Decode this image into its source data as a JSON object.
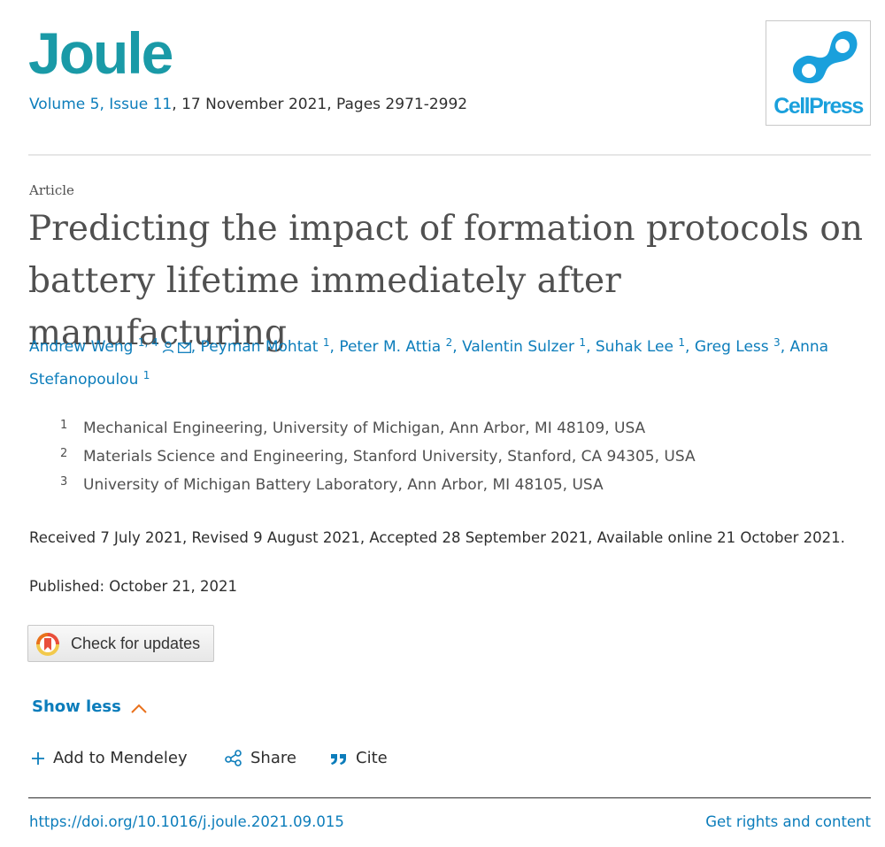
{
  "journal": {
    "title": "Joule",
    "volume_issue": "Volume 5, Issue 11",
    "date_pages": ", 17 November 2021, Pages 2971-2992",
    "publisher_logo_text": "CellPress",
    "logo_color": "#1aa0dc"
  },
  "article": {
    "type": "Article",
    "title_line1": "Predicting the impact of formation protocols on",
    "title_line2": "battery lifetime immediately after manufacturing"
  },
  "authors": [
    {
      "name": "Andrew Weng",
      "sup": "1, 4",
      "icons": [
        "person-icon",
        "envelope-icon"
      ]
    },
    {
      "name": "Peyman Mohtat",
      "sup": "1"
    },
    {
      "name": "Peter M. Attia",
      "sup": "2"
    },
    {
      "name": "Valentin Sulzer",
      "sup": "1"
    },
    {
      "name": "Suhak Lee",
      "sup": "1"
    },
    {
      "name": "Greg Less",
      "sup": "3"
    },
    {
      "name": "Anna Stefanopoulou",
      "sup": "1"
    }
  ],
  "affiliations": [
    {
      "num": "1",
      "text": "Mechanical Engineering, University of Michigan, Ann Arbor, MI 48109, USA"
    },
    {
      "num": "2",
      "text": "Materials Science and Engineering, Stanford University, Stanford, CA 94305, USA"
    },
    {
      "num": "3",
      "text": "University of Michigan Battery Laboratory, Ann Arbor, MI 48105, USA"
    }
  ],
  "dates": "Received 7 July 2021, Revised 9 August 2021, Accepted 28 September 2021, Available online 21 October 2021.",
  "published": "Published: October 21, 2021",
  "check_updates_label": "Check for updates",
  "show_less_label": "Show less",
  "actions": {
    "mendeley": "Add to Mendeley",
    "share": "Share",
    "cite": "Cite"
  },
  "doi": "https://doi.org/10.1016/j.joule.2021.09.015",
  "rights": "Get rights and content",
  "colors": {
    "link": "#0c7dbb",
    "journal_brand": "#1a9aa7",
    "accent_orange": "#e9711c"
  }
}
